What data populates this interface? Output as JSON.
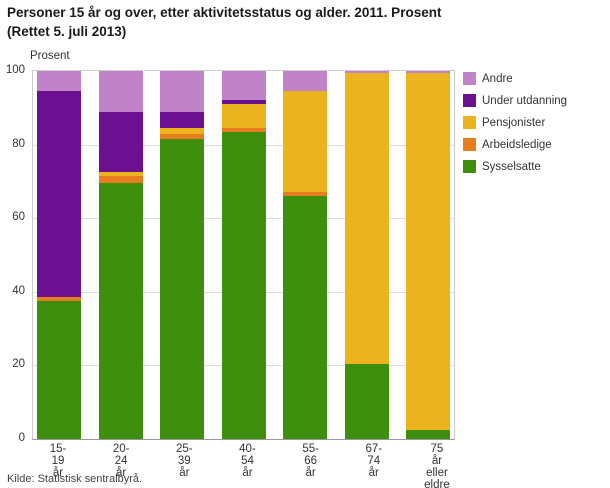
{
  "header": {
    "title": "Personer 15 år og over, etter aktivitetsstatus og alder. 2011. Prosent\n(Rettet 5. juli 2013)"
  },
  "source": "Kilde: Statistisk sentralbyrå.",
  "chart_data": {
    "type": "bar",
    "stacked": true,
    "title": "Personer 15 år og over, etter aktivitetsstatus og alder. 2011. Prosent (Rettet 5. juli 2013)",
    "ylabel": "Prosent",
    "xlabel": "",
    "ylim": [
      0,
      100
    ],
    "yticks": [
      0,
      20,
      40,
      60,
      80,
      100
    ],
    "grid": true,
    "legend_position": "right",
    "legend_order_top_to_bottom": [
      "Andre",
      "Under utdanning",
      "Pensjonister",
      "Arbeidsledige",
      "Sysselsatte"
    ],
    "categories": [
      "15-19 år",
      "20-24 år",
      "25-39 år",
      "40-54 år",
      "55-66 år",
      "67-74 år",
      "75 år\neller eldre"
    ],
    "series": [
      {
        "name": "Sysselsatte",
        "color": "#3f8f0f",
        "values": [
          37.5,
          69.5,
          81.5,
          83.5,
          66.0,
          20.5,
          2.5
        ]
      },
      {
        "name": "Arbeidsledige",
        "color": "#e87d1e",
        "values": [
          1.0,
          2.0,
          1.5,
          1.0,
          1.0,
          0,
          0
        ]
      },
      {
        "name": "Pensjonister",
        "color": "#ebb41e",
        "values": [
          0,
          1.0,
          1.5,
          6.5,
          27.5,
          79.0,
          97.0
        ]
      },
      {
        "name": "Under utdanning",
        "color": "#6a1090",
        "values": [
          56.0,
          16.5,
          4.5,
          1.0,
          0,
          0,
          0
        ]
      },
      {
        "name": "Andre",
        "color": "#c083c8",
        "values": [
          5.5,
          11.0,
          11.0,
          8.0,
          5.5,
          0.5,
          0.5
        ]
      }
    ]
  }
}
